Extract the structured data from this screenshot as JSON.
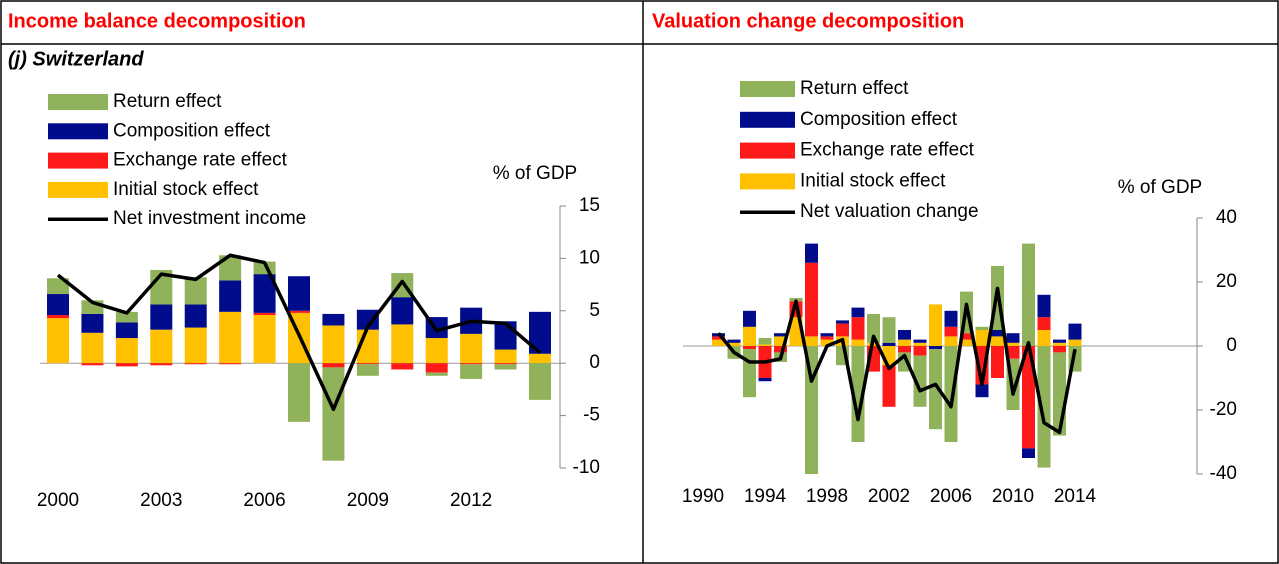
{
  "titles": [
    "Income balance decomposition",
    "Valuation change decomposition"
  ],
  "subtitle": "(j) Switzerland",
  "chart_data": [
    {
      "type": "bar",
      "stacked": true,
      "y_label": "% of GDP",
      "x": [
        2000,
        2001,
        2002,
        2003,
        2004,
        2005,
        2006,
        2007,
        2008,
        2009,
        2010,
        2011,
        2012,
        2013,
        2014
      ],
      "xlim": [
        1999.5,
        2014.5
      ],
      "xticks": [
        2000,
        2003,
        2006,
        2009,
        2012
      ],
      "ylim": [
        -10,
        15
      ],
      "yticks": [
        15,
        10,
        5,
        0,
        -5,
        -10
      ],
      "series": [
        {
          "name": "Return effect",
          "color": "#8fb25a",
          "values": [
            1.5,
            1.3,
            1.0,
            3.3,
            2.6,
            2.4,
            1.2,
            -5.6,
            -8.9,
            -1.1,
            2.3,
            -0.3,
            -1.4,
            -0.5,
            -3.5
          ]
        },
        {
          "name": "Composition effect",
          "color": "#000c8c",
          "values": [
            2.0,
            1.8,
            1.5,
            2.4,
            2.2,
            3.0,
            3.7,
            3.3,
            1.1,
            1.9,
            2.6,
            2.0,
            2.5,
            2.7,
            4.0
          ]
        },
        {
          "name": "Exchange rate effect",
          "color": "#ff1a1a",
          "values": [
            0.3,
            -0.2,
            -0.3,
            -0.2,
            -0.1,
            -0.1,
            0.2,
            0.2,
            -0.4,
            -0.1,
            -0.6,
            -0.9,
            -0.1,
            -0.1,
            0
          ]
        },
        {
          "name": "Initial stock effect",
          "color": "#ffc000",
          "values": [
            4.3,
            2.9,
            2.4,
            3.2,
            3.4,
            4.9,
            4.6,
            4.8,
            3.6,
            3.2,
            3.7,
            2.4,
            2.8,
            1.3,
            0.9
          ]
        },
        {
          "name": "Net investment income",
          "type": "line",
          "color": "#000000",
          "values": [
            8.4,
            5.8,
            4.8,
            8.5,
            8.0,
            10.3,
            9.6,
            2.7,
            -4.4,
            3.5,
            7.8,
            3.1,
            4.0,
            3.8,
            1.0
          ]
        }
      ]
    },
    {
      "type": "bar",
      "stacked": true,
      "y_label": "% of GDP",
      "x": [
        1991,
        1992,
        1993,
        1994,
        1995,
        1996,
        1997,
        1998,
        1999,
        2000,
        2001,
        2002,
        2003,
        2004,
        2005,
        2006,
        2007,
        2008,
        2009,
        2010,
        2011,
        2012,
        2013,
        2014
      ],
      "xlim": [
        1989.5,
        2014.5
      ],
      "xticks": [
        1990,
        1994,
        1998,
        2002,
        2006,
        2010,
        2014
      ],
      "ylim": [
        -40,
        40
      ],
      "yticks": [
        40,
        20,
        0,
        -20,
        -40
      ],
      "series": [
        {
          "name": "Return effect",
          "color": "#8fb25a",
          "values": [
            0,
            -4,
            -15,
            2,
            -3,
            1,
            -40,
            0,
            -6,
            -30,
            9,
            8,
            -6,
            -16,
            -25,
            -30,
            13,
            1,
            20,
            -16,
            32,
            -38,
            -26,
            -8
          ]
        },
        {
          "name": "Composition effect",
          "color": "#000c8c",
          "values": [
            1,
            1,
            5,
            -1,
            1,
            0,
            6,
            1,
            1,
            3,
            0,
            1,
            3,
            1,
            -1,
            5,
            0,
            -4,
            2,
            3,
            -3,
            7,
            1,
            5
          ]
        },
        {
          "name": "Exchange rate effect",
          "color": "#ff1a1a",
          "values": [
            1,
            0,
            -1,
            -10,
            -2,
            5,
            23,
            1,
            4,
            7,
            -8,
            -13,
            -2,
            -3,
            0,
            3,
            2,
            -12,
            -10,
            -4,
            -32,
            4,
            -2,
            0
          ]
        },
        {
          "name": "Initial stock effect",
          "color": "#ffc000",
          "values": [
            2,
            1,
            6,
            0.5,
            3,
            9,
            3,
            2,
            3,
            2,
            1,
            -6,
            2,
            1,
            13,
            3,
            2,
            5,
            3,
            1,
            0,
            5,
            1,
            2
          ]
        },
        {
          "name": "Net valuation change",
          "type": "line",
          "color": "#000000",
          "values": [
            4,
            -2,
            -5,
            -5,
            -4,
            14,
            -11,
            0,
            2,
            -23,
            3,
            -7,
            -3,
            -14,
            -12,
            -19,
            13,
            -12,
            18,
            -15,
            1,
            -24,
            -27,
            -1
          ]
        }
      ]
    }
  ]
}
